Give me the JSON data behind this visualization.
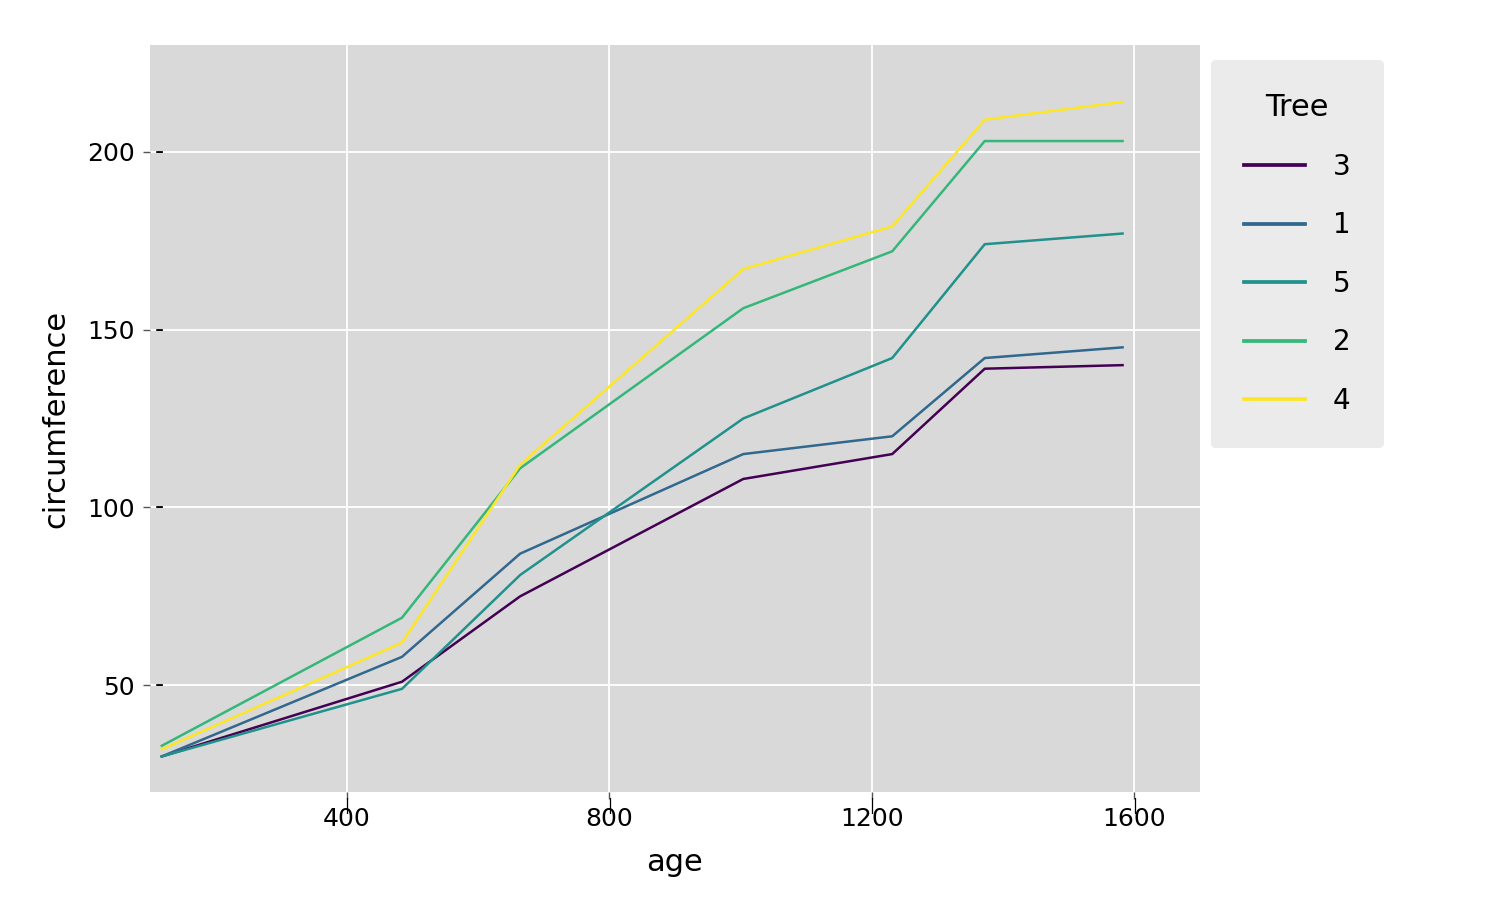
{
  "title": "",
  "xlabel": "age",
  "ylabel": "circumference",
  "plot_bg_color": "#D9D9D9",
  "fig_bg_color": "#FFFFFF",
  "legend_bg": "#EBEBEB",
  "trees": {
    "1": {
      "age": [
        118,
        484,
        664,
        1004,
        1231,
        1372,
        1582
      ],
      "circ": [
        30,
        58,
        87,
        115,
        120,
        142,
        145
      ],
      "color": "#31688E",
      "label": "1"
    },
    "2": {
      "age": [
        118,
        484,
        664,
        1004,
        1231,
        1372,
        1582
      ],
      "circ": [
        33,
        69,
        111,
        156,
        172,
        203,
        203
      ],
      "color": "#35B779",
      "label": "2"
    },
    "3": {
      "age": [
        118,
        484,
        664,
        1004,
        1231,
        1372,
        1582
      ],
      "circ": [
        30,
        51,
        75,
        108,
        115,
        139,
        140
      ],
      "color": "#440154",
      "label": "3"
    },
    "4": {
      "age": [
        118,
        484,
        664,
        1004,
        1231,
        1372,
        1582
      ],
      "circ": [
        32,
        62,
        112,
        167,
        179,
        209,
        214
      ],
      "color": "#FDE725",
      "label": "4"
    },
    "5": {
      "age": [
        118,
        484,
        664,
        1004,
        1231,
        1372,
        1582
      ],
      "circ": [
        30,
        49,
        81,
        125,
        142,
        174,
        177
      ],
      "color": "#21918C",
      "label": "5"
    }
  },
  "legend_order": [
    "3",
    "1",
    "5",
    "2",
    "4"
  ],
  "xlim": [
    100,
    1700
  ],
  "ylim": [
    20,
    230
  ],
  "xticks": [
    400,
    800,
    1200,
    1600
  ],
  "yticks": [
    50,
    100,
    150,
    200
  ],
  "line_width": 1.8,
  "legend_title": "Tree",
  "legend_title_fontsize": 22,
  "legend_fontsize": 20,
  "axis_label_fontsize": 22,
  "tick_fontsize": 18
}
